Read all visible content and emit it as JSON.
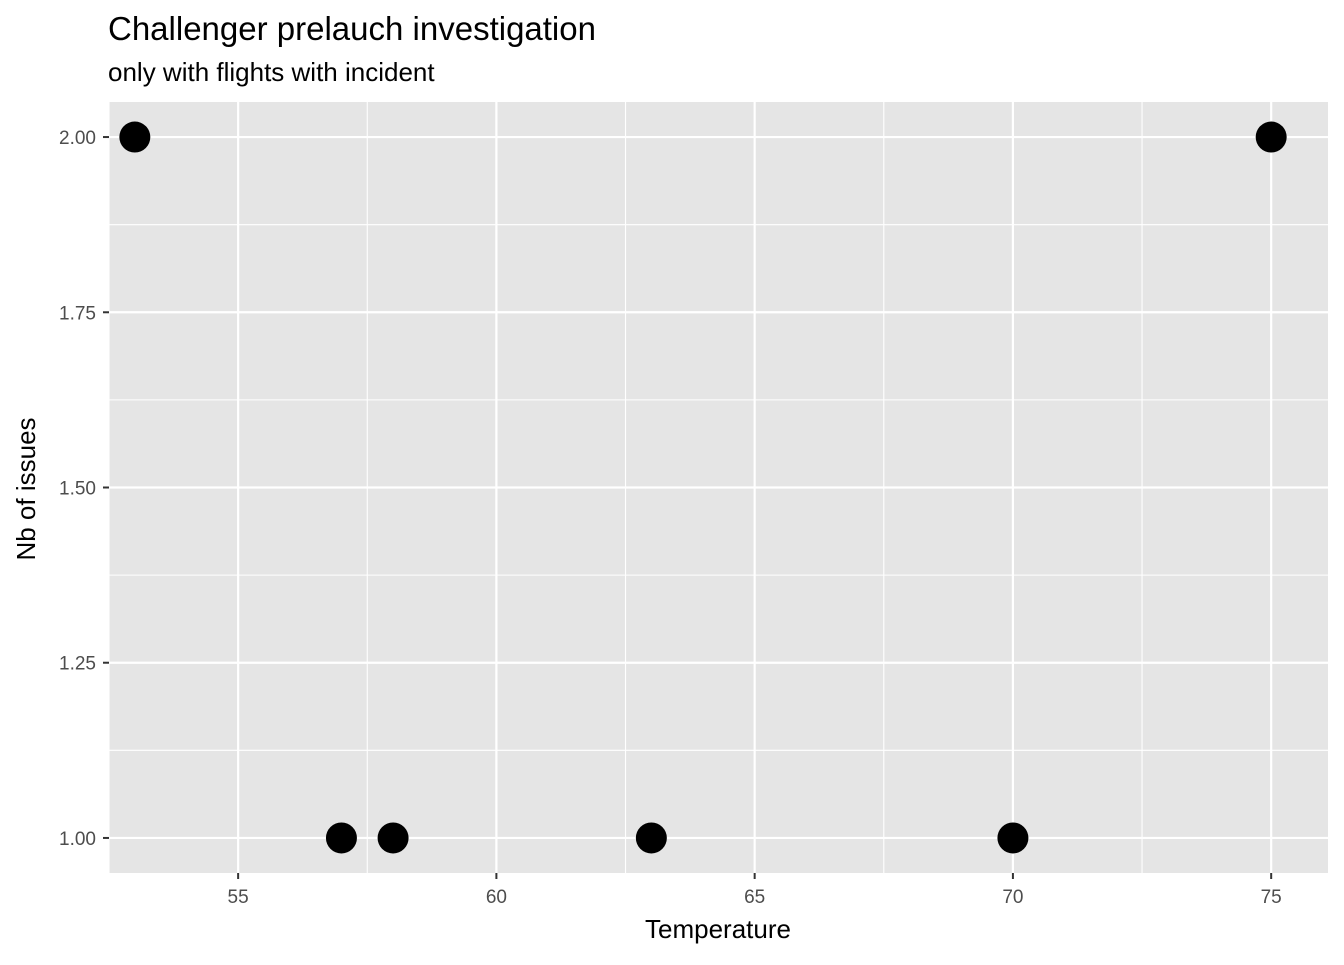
{
  "chart_data": {
    "type": "scatter",
    "title": "Challenger prelauch investigation",
    "subtitle": "only with flights with incident",
    "xlabel": "Temperature",
    "ylabel": "Nb of issues",
    "xlim": [
      52.5,
      76.1
    ],
    "ylim": [
      0.95,
      2.05
    ],
    "xticks": [
      55,
      60,
      65,
      70,
      75
    ],
    "xtick_labels": [
      "55",
      "60",
      "65",
      "70",
      "75"
    ],
    "yticks": [
      1.0,
      1.25,
      1.5,
      1.75,
      2.0
    ],
    "ytick_labels": [
      "1.00",
      "1.25",
      "1.50",
      "1.75",
      "2.00"
    ],
    "grid": true,
    "points": [
      {
        "x": 53,
        "y": 2
      },
      {
        "x": 57,
        "y": 1
      },
      {
        "x": 58,
        "y": 1
      },
      {
        "x": 63,
        "y": 1
      },
      {
        "x": 70,
        "y": 1
      },
      {
        "x": 75,
        "y": 2
      }
    ],
    "colors": {
      "panel_background": "#e5e5e5",
      "grid_line": "#ffffff",
      "point": "#000000",
      "tick_text": "#4d4d4d",
      "tick_mark": "#333333"
    }
  }
}
